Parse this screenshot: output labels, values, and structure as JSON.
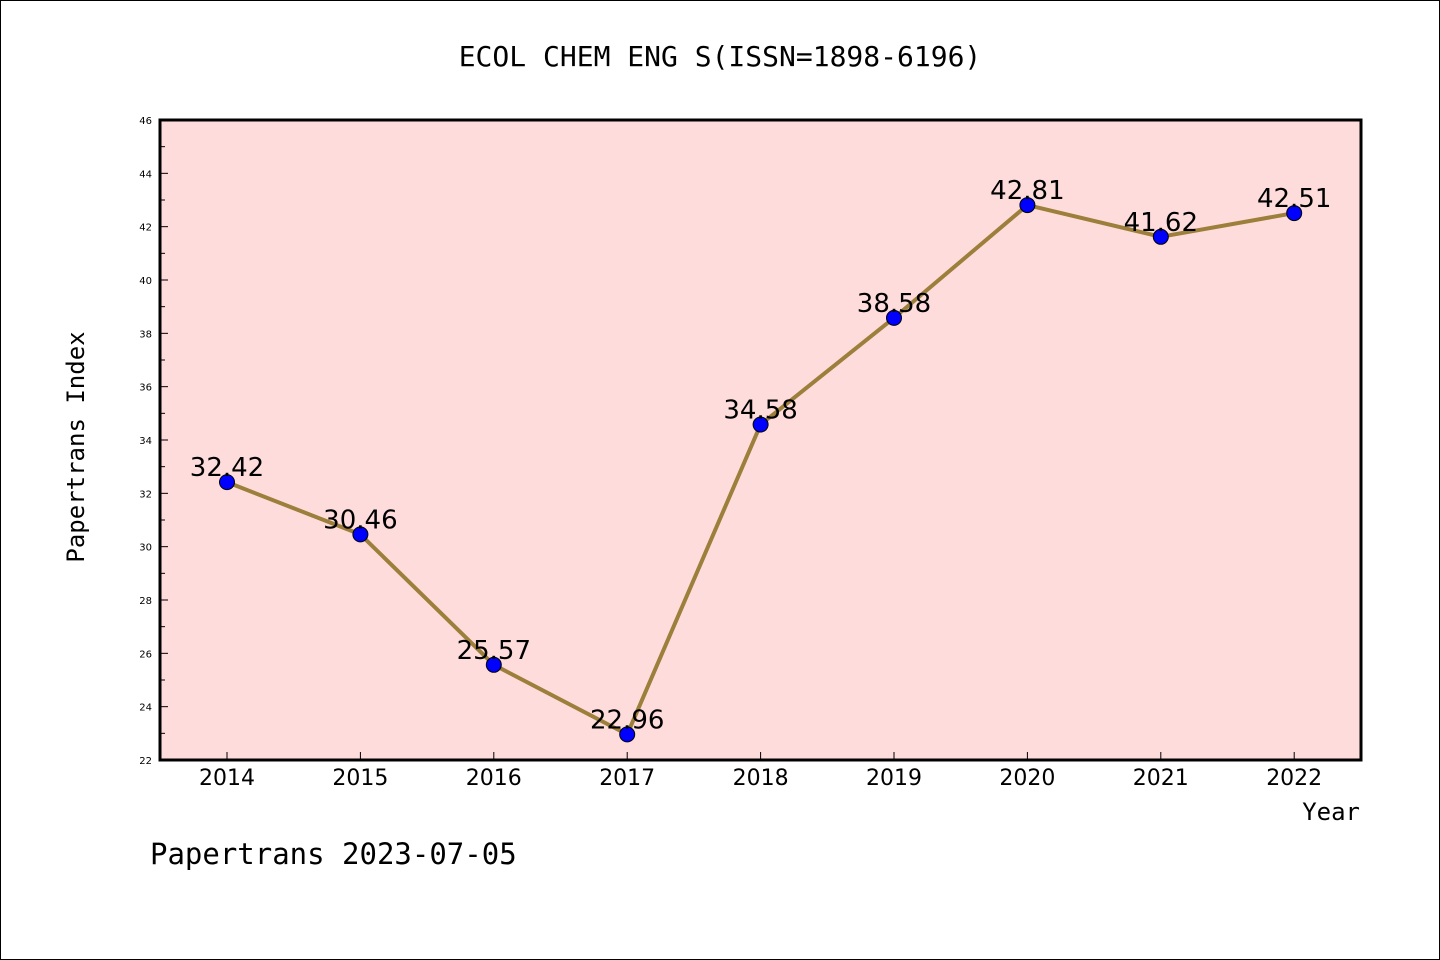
{
  "chart_data": {
    "type": "line",
    "title": "ECOL CHEM ENG S(ISSN=1898-6196)",
    "xlabel": "Year",
    "ylabel": "Papertrans Index",
    "categories": [
      "2014",
      "2015",
      "2016",
      "2017",
      "2018",
      "2019",
      "2020",
      "2021",
      "2022"
    ],
    "series": [
      {
        "values": [
          32.42,
          30.46,
          25.57,
          22.96,
          34.58,
          38.58,
          42.81,
          41.62,
          42.51
        ],
        "labels": [
          "32.42",
          "30.46",
          "25.57",
          "22.96",
          "34.58",
          "38.58",
          "42.81",
          "41.62",
          "42.51"
        ]
      }
    ],
    "ylim": [
      22,
      46
    ],
    "yticks": [
      "22",
      "24",
      "26",
      "28",
      "30",
      "32",
      "34",
      "36",
      "38",
      "40",
      "42",
      "44",
      "46"
    ],
    "grid": false,
    "legend": "none",
    "colors": {
      "plot_background": "#ffdcdc",
      "line": "#9b7f3a",
      "marker": "#0000ff"
    }
  },
  "footer": {
    "text": "Papertrans 2023-07-05"
  }
}
